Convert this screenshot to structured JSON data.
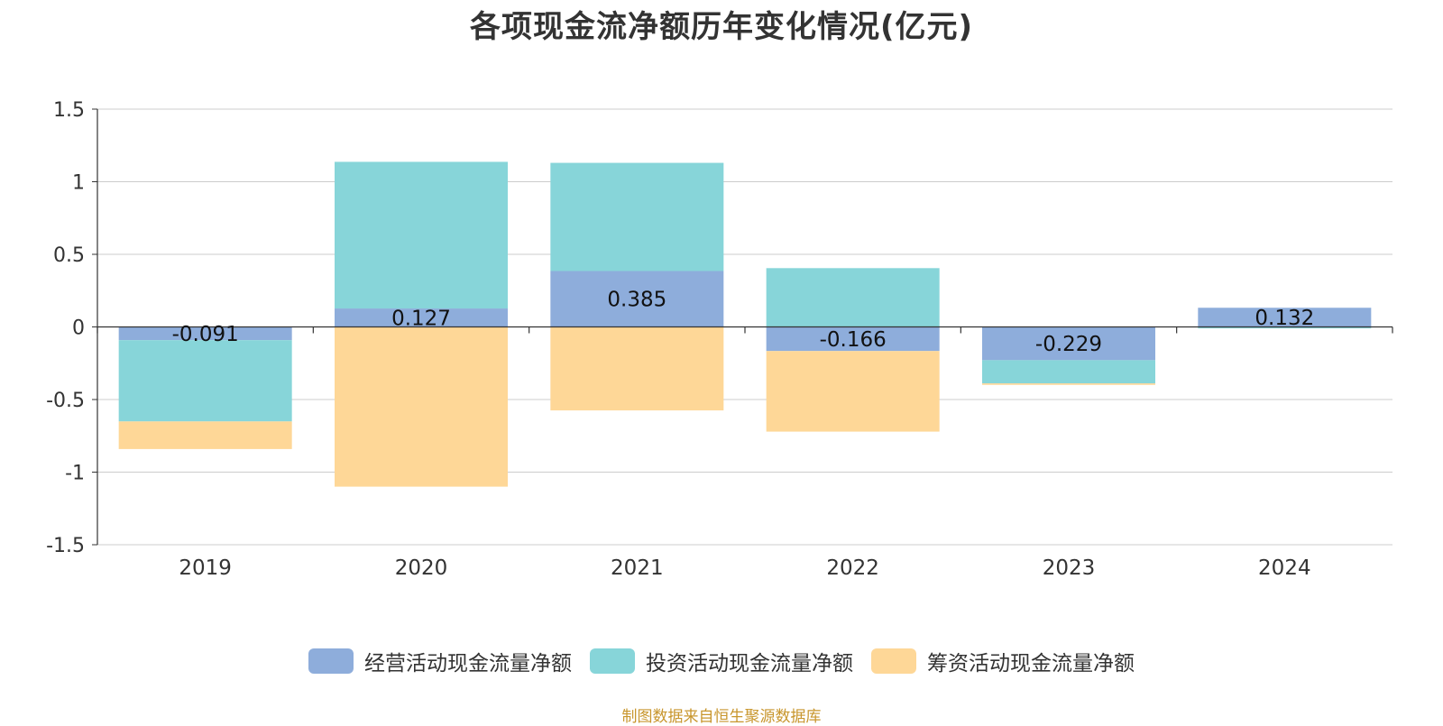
{
  "title": "各项现金流净额历年变化情况(亿元)",
  "source": "制图数据来自恒生聚源数据库",
  "colors": {
    "operating": "#8eaddb",
    "investing": "#87d5d9",
    "financing": "#fed797",
    "grid": "#cccccc",
    "axis": "#333333",
    "text": "#333333"
  },
  "chart_data": {
    "type": "bar",
    "stacked": true,
    "categories": [
      "2019",
      "2020",
      "2021",
      "2022",
      "2023",
      "2024"
    ],
    "ylim": [
      -1.5,
      1.5
    ],
    "yticks": [
      1.5,
      1,
      0.5,
      0,
      -0.5,
      -1,
      -1.5
    ],
    "ytick_labels": [
      "1.5",
      "1",
      "0.5",
      "0",
      "-0.5",
      "-1",
      "-1.5"
    ],
    "grid": true,
    "legend_position": "bottom",
    "series": [
      {
        "name": "经营活动现金流量净额",
        "values": [
          -0.091,
          0.127,
          0.385,
          -0.166,
          -0.229,
          0.132
        ],
        "labels": [
          "-0.091",
          "0.127",
          "0.385",
          "-0.166",
          "-0.229",
          "0.132"
        ]
      },
      {
        "name": "投资活动现金流量净额",
        "values": [
          -0.56,
          1.01,
          0.745,
          0.405,
          -0.16,
          -0.01
        ]
      },
      {
        "name": "筹资活动现金流量净额",
        "values": [
          -0.19,
          -1.1,
          -0.575,
          -0.555,
          -0.01,
          0
        ]
      }
    ]
  }
}
